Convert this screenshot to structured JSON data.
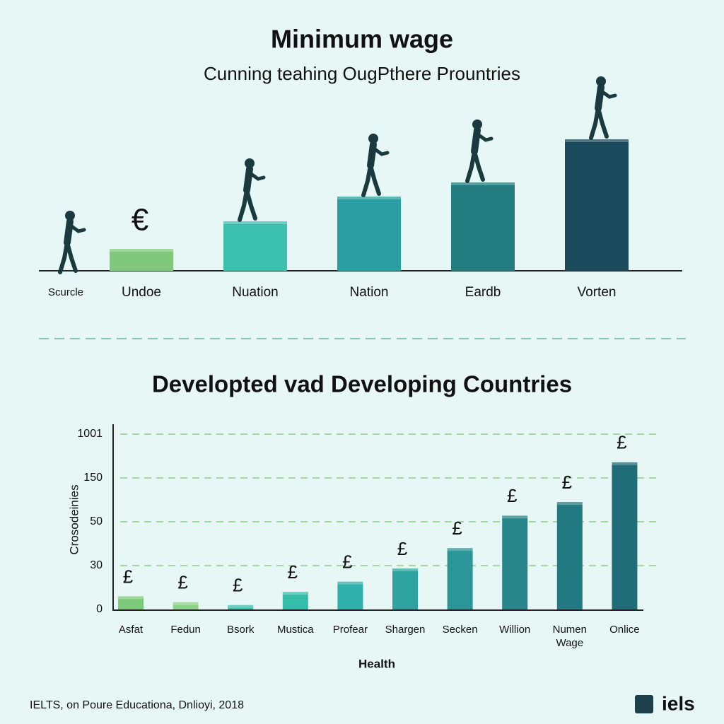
{
  "chart_data": [
    {
      "type": "bar",
      "title": "Minimum wage",
      "subtitle": "Cunning teahing OugPthere Prountries",
      "categories": [
        "Scurcle",
        "Undoe",
        "Nuation",
        "Nation",
        "Eardb",
        "Vorten"
      ],
      "values": [
        null,
        31,
        70,
        105,
        125,
        186
      ],
      "colors": [
        null,
        "#80c97c",
        "#3cc0b0",
        "#2a9ea2",
        "#237d80",
        "#1b4a5c"
      ],
      "annotation": "€"
    },
    {
      "type": "bar",
      "title": "Developted vad Developing Countries",
      "y_label": "Crosodeinies",
      "x_label": "Health",
      "categories": [
        "Asfat",
        "Fedun",
        "Bsork",
        "Mustica",
        "Profear",
        "Shargen",
        "Secken",
        "Willion",
        "Numen Wage",
        "Onlice"
      ],
      "values": [
        9,
        5,
        3,
        12,
        19,
        28,
        38,
        64,
        95,
        454
      ],
      "colors": [
        "#7cc979",
        "#8fd08a",
        "#3dbfae",
        "#35bda9",
        "#30b0aa",
        "#2ea39f",
        "#2a9698",
        "#28868b",
        "#247a82",
        "#1f6d76"
      ],
      "bar_symbol": "£",
      "ylim": [
        0,
        1001
      ],
      "yticks": [
        0,
        30,
        50,
        150,
        1001
      ],
      "grid": true
    }
  ],
  "footer": {
    "source": "IELTS, on Poure Educationa, Dnlioyi, 2018",
    "logo": "iels"
  }
}
